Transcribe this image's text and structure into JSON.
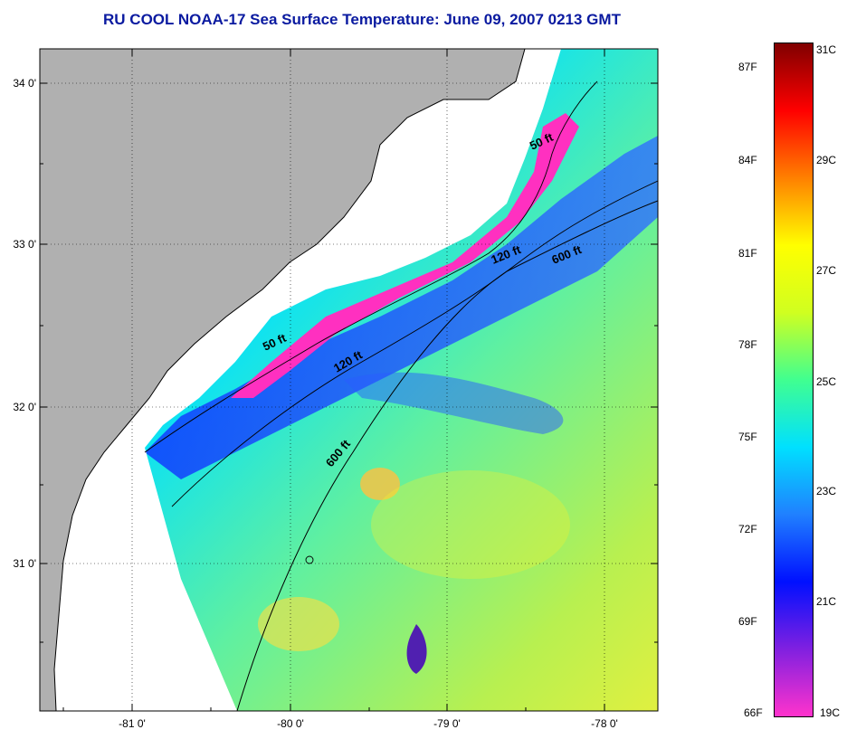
{
  "title": "RU COOL  NOAA-17  Sea Surface Temperature:  June 09, 2007 0213 GMT",
  "map": {
    "lat_labels": [
      "34 0'",
      "33 0'",
      "32 0'",
      "31 0'"
    ],
    "lon_labels": [
      "-81 0'",
      "-80 0'",
      "-79 0'",
      "-78 0'"
    ],
    "isobath_labels": [
      "50 ft",
      "120 ft",
      "600 ft",
      "50 ft",
      "120 ft",
      "600 ft"
    ],
    "colors": {
      "land": "#b0b0b0",
      "no_data": "#ffffff",
      "coastline": "#000000"
    }
  },
  "colorbar": {
    "fahrenheit_labels": [
      "87F",
      "84F",
      "81F",
      "78F",
      "75F",
      "72F",
      "69F",
      "66F"
    ],
    "celsius_labels": [
      "31C",
      "29C",
      "27C",
      "25C",
      "23C",
      "21C",
      "19C"
    ],
    "colors": [
      "#ff33cc",
      "#8020e0",
      "#0010ff",
      "#2080ff",
      "#00e0ff",
      "#40ff90",
      "#d0ff20",
      "#ffff00",
      "#ff8000",
      "#ff0000",
      "#800000"
    ]
  }
}
